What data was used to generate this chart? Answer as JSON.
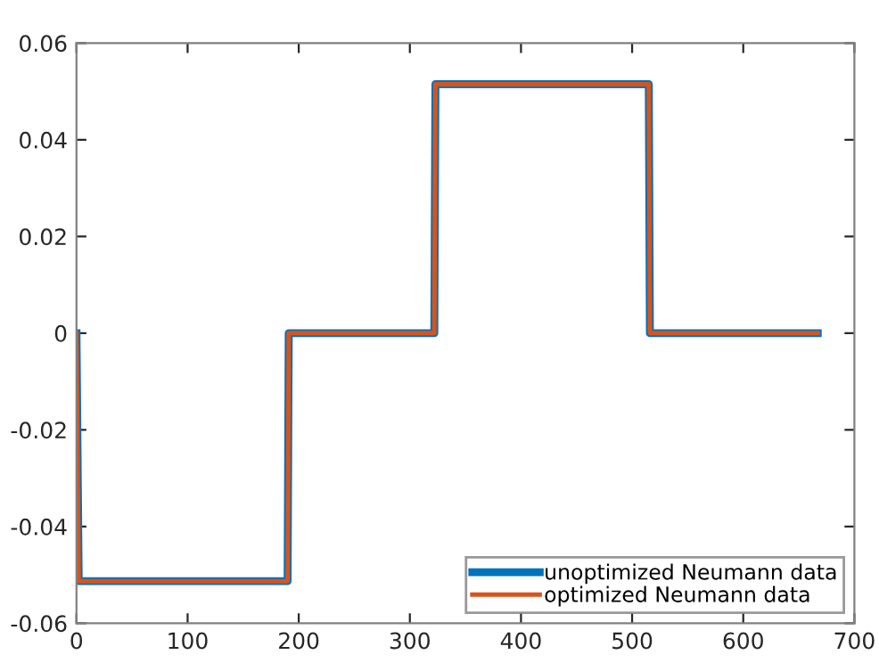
{
  "chart_data": {
    "type": "line",
    "series": [
      {
        "name": "unoptimized Neumann data",
        "color": "#0072bd",
        "x": [
          0,
          2,
          190,
          191,
          322,
          323,
          515,
          516,
          667
        ],
        "values": [
          0,
          -0.0513,
          -0.0513,
          0,
          0,
          0.0515,
          0.0515,
          0,
          0
        ]
      },
      {
        "name": "optimized Neumann data",
        "color": "#d95319",
        "x": [
          0,
          2,
          190,
          191,
          322,
          323,
          515,
          516,
          667
        ],
        "values": [
          0,
          -0.0513,
          -0.0513,
          0,
          0,
          0.0515,
          0.0515,
          0,
          0
        ]
      }
    ],
    "xlim": [
      0,
      700
    ],
    "xticks": [
      0,
      100,
      200,
      300,
      400,
      500,
      600,
      700
    ],
    "ylim": [
      -0.06,
      0.06
    ],
    "yticks": [
      -0.06,
      -0.04,
      -0.02,
      0,
      0.02,
      0.04,
      0.06
    ],
    "legend": "bottom right",
    "grid": false,
    "marker": "none",
    "line_style": "solid"
  }
}
